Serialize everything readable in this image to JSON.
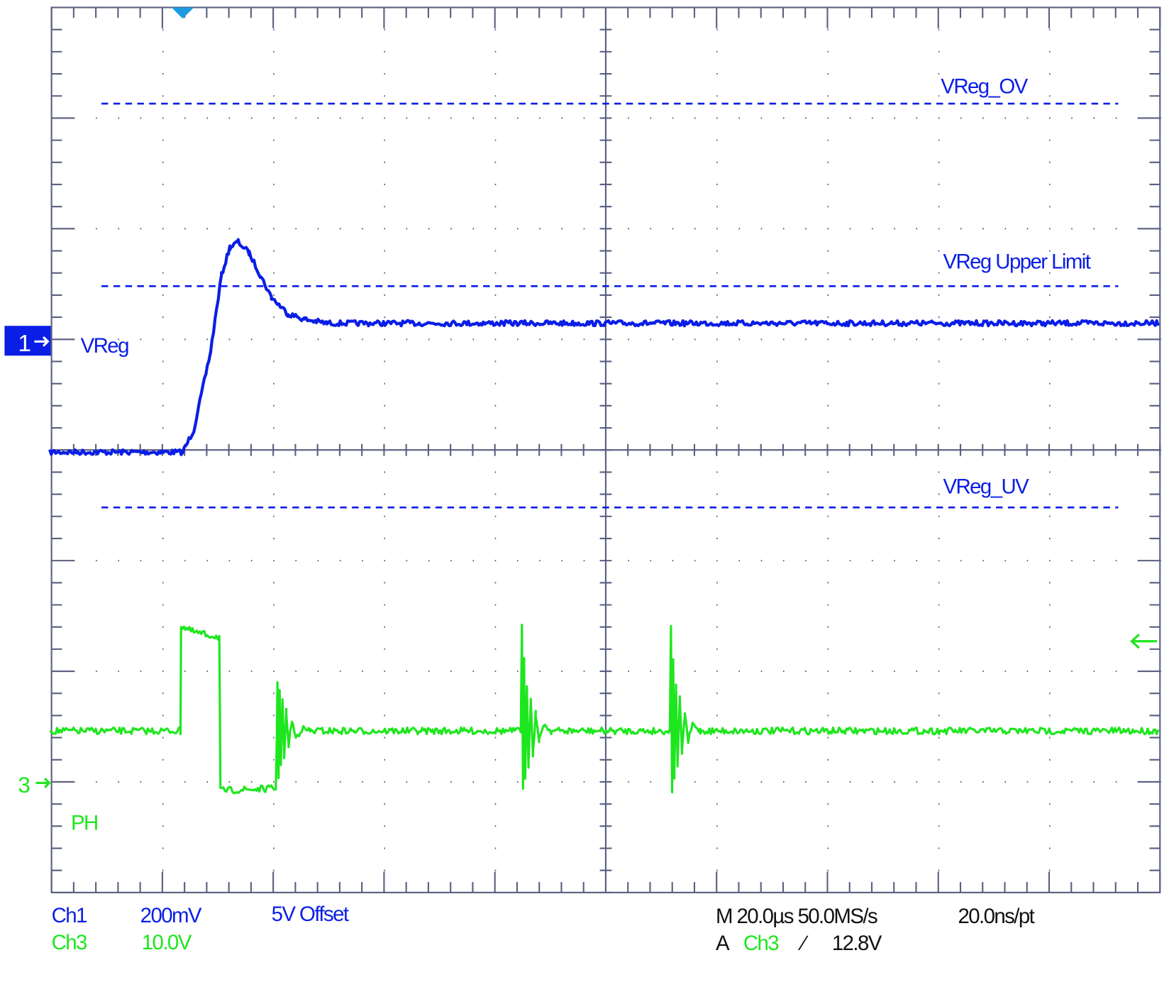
{
  "colors": {
    "ch1": "#0a1ee6",
    "ch3": "#1ee61e",
    "graticule": "#5a5f80",
    "trigger_marker": "#1e9be0",
    "readout": "#111111"
  },
  "readout": {
    "ch1_name": "Ch1",
    "ch1_scale": "200mV",
    "ch1_offset": "5V Offset",
    "ch3_name": "Ch3",
    "ch3_scale": "10.0V",
    "timebase": "M 20.0µs 50.0MS/s",
    "record": "20.0ns/pt",
    "trigger_prefix": "A",
    "trigger_source": "Ch3",
    "trigger_slope": "∕",
    "trigger_level": "12.8V"
  },
  "markers": {
    "ch1": "1",
    "ch3": "3"
  },
  "chart_data": {
    "type": "line",
    "x_unit": "µs (relative to trigger)",
    "xlim": [
      -24.3,
      175.7
    ],
    "divisions": {
      "horizontal": 10,
      "vertical": 8
    },
    "grid": true,
    "series": [
      {
        "name": "VReg",
        "channel": "Ch1",
        "volts_per_div": 0.2,
        "offset_v": 5.0,
        "color": "#0a1ee6",
        "points": [
          [
            -24,
            4.8
          ],
          [
            0,
            4.8
          ],
          [
            2,
            4.84
          ],
          [
            5,
            4.98
          ],
          [
            7,
            5.12
          ],
          [
            8.5,
            5.17
          ],
          [
            10,
            5.18
          ],
          [
            12,
            5.16
          ],
          [
            14,
            5.12
          ],
          [
            16,
            5.08
          ],
          [
            19,
            5.05
          ],
          [
            22,
            5.04
          ],
          [
            26,
            5.033
          ],
          [
            176,
            5.033
          ]
        ]
      },
      {
        "name": "PH",
        "channel": "Ch3",
        "volts_per_div": 10.0,
        "offset_v": 0,
        "color": "#1ee61e",
        "points": [
          [
            -24,
            4.7
          ],
          [
            -0.4,
            4.7
          ],
          [
            -0.3,
            14.2
          ],
          [
            2,
            13.6
          ],
          [
            6.6,
            13.2
          ],
          [
            6.8,
            -0.7
          ],
          [
            16.8,
            -0.5
          ],
          [
            17.0,
            4.7
          ],
          [
            17.1,
            9.3
          ],
          [
            17.3,
            0.4
          ],
          [
            17.5,
            8.2
          ],
          [
            17.7,
            1.5
          ],
          [
            18.0,
            7.3
          ],
          [
            18.3,
            2.5
          ],
          [
            18.7,
            6.4
          ],
          [
            19.1,
            3.3
          ],
          [
            19.7,
            5.6
          ],
          [
            20.4,
            4.1
          ],
          [
            21.5,
            4.9
          ],
          [
            23,
            4.7
          ],
          [
            61.0,
            4.7
          ],
          [
            61.2,
            14.1
          ],
          [
            61.4,
            -0.6
          ],
          [
            61.6,
            11.0
          ],
          [
            61.8,
            0.6
          ],
          [
            62.1,
            9.0
          ],
          [
            62.4,
            1.6
          ],
          [
            62.8,
            7.6
          ],
          [
            63.2,
            2.7
          ],
          [
            63.7,
            6.3
          ],
          [
            64.3,
            3.7
          ],
          [
            65.1,
            5.3
          ],
          [
            66.5,
            4.7
          ],
          [
            87.9,
            4.7
          ],
          [
            88.1,
            14.1
          ],
          [
            88.3,
            -0.6
          ],
          [
            88.5,
            11.0
          ],
          [
            88.7,
            0.6
          ],
          [
            89.0,
            9.0
          ],
          [
            89.3,
            1.6
          ],
          [
            89.7,
            7.6
          ],
          [
            90.1,
            2.7
          ],
          [
            90.6,
            6.3
          ],
          [
            91.2,
            3.7
          ],
          [
            92.0,
            5.3
          ],
          [
            93.4,
            4.7
          ],
          [
            176,
            4.7
          ]
        ]
      }
    ],
    "reference_lines": [
      {
        "label": "VReg_OV",
        "channel": "Ch1",
        "value_v": 5.43,
        "style": "dashed"
      },
      {
        "label": "VReg Upper Limit",
        "channel": "Ch1",
        "value_v": 5.1,
        "style": "dashed"
      },
      {
        "label": "VReg_UV",
        "channel": "Ch1",
        "value_v": 4.7,
        "style": "dashed"
      }
    ],
    "trigger": {
      "time_us": 0,
      "source": "Ch3",
      "level_v": 12.8
    }
  }
}
